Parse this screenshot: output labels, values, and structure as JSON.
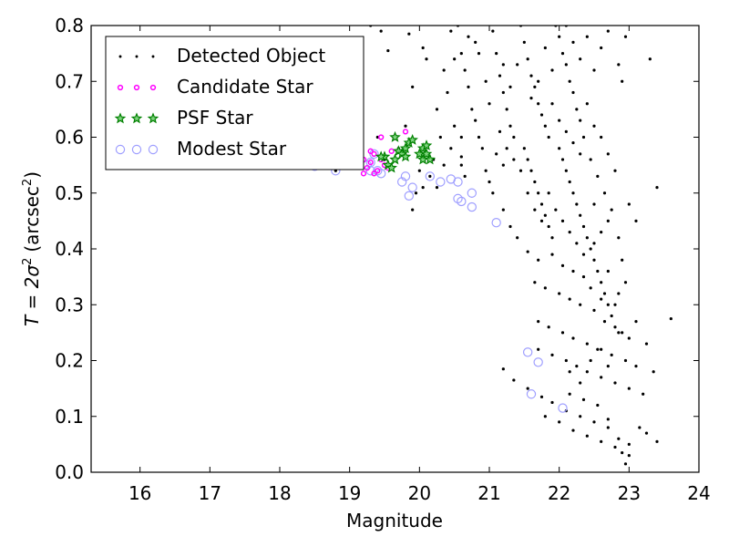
{
  "chart_data": {
    "type": "scatter",
    "xlabel": "Magnitude",
    "ylabel_prefix": "T = 2σ",
    "ylabel_sup_y": "2",
    "ylabel_unit": "(arcsec",
    "ylabel_sup_u": "2",
    "ylabel_close": ")",
    "xlim": [
      15.3,
      24.0
    ],
    "ylim": [
      0.0,
      0.8
    ],
    "xticks": [
      16,
      17,
      18,
      19,
      20,
      21,
      22,
      23,
      24
    ],
    "yticks": [
      0.0,
      0.1,
      0.2,
      0.3,
      0.4,
      0.5,
      0.6,
      0.7,
      0.8
    ],
    "grid": false,
    "legend_position": "top-left",
    "series": [
      {
        "name": "Detected Object",
        "marker": "dot",
        "color": "#000000",
        "points": [
          [
            17.2,
            0.548
          ],
          [
            17.6,
            0.548
          ],
          [
            18.0,
            0.548
          ],
          [
            18.5,
            0.546
          ],
          [
            18.8,
            0.54
          ],
          [
            19.05,
            0.552
          ],
          [
            19.15,
            0.545
          ],
          [
            19.4,
            0.6
          ],
          [
            19.9,
            0.47
          ],
          [
            20.3,
            0.6
          ],
          [
            20.5,
            0.62
          ],
          [
            19.8,
            0.62
          ],
          [
            19.5,
            0.56
          ],
          [
            19.6,
            0.545
          ],
          [
            19.7,
            0.58
          ],
          [
            20.6,
            0.565
          ],
          [
            19.3,
            0.8
          ],
          [
            19.45,
            0.79
          ],
          [
            19.55,
            0.755
          ],
          [
            19.85,
            0.785
          ],
          [
            20.05,
            0.76
          ],
          [
            20.1,
            0.74
          ],
          [
            20.25,
            0.65
          ],
          [
            19.9,
            0.69
          ],
          [
            20.35,
            0.72
          ],
          [
            20.45,
            0.79
          ],
          [
            20.55,
            0.8
          ],
          [
            20.6,
            0.75
          ],
          [
            20.65,
            0.72
          ],
          [
            20.7,
            0.69
          ],
          [
            20.75,
            0.65
          ],
          [
            20.8,
            0.63
          ],
          [
            20.85,
            0.6
          ],
          [
            20.9,
            0.58
          ],
          [
            20.6,
            0.55
          ],
          [
            20.65,
            0.53
          ],
          [
            20.95,
            0.54
          ],
          [
            21.0,
            0.52
          ],
          [
            20.8,
            0.77
          ],
          [
            21.05,
            0.79
          ],
          [
            21.1,
            0.75
          ],
          [
            21.15,
            0.71
          ],
          [
            21.2,
            0.68
          ],
          [
            21.25,
            0.65
          ],
          [
            21.3,
            0.62
          ],
          [
            21.35,
            0.6
          ],
          [
            21.1,
            0.57
          ],
          [
            21.2,
            0.55
          ],
          [
            21.05,
            0.5
          ],
          [
            21.2,
            0.47
          ],
          [
            21.3,
            0.44
          ],
          [
            21.4,
            0.42
          ],
          [
            21.45,
            0.8
          ],
          [
            21.5,
            0.77
          ],
          [
            21.55,
            0.74
          ],
          [
            21.6,
            0.71
          ],
          [
            21.65,
            0.69
          ],
          [
            21.7,
            0.66
          ],
          [
            21.75,
            0.64
          ],
          [
            21.8,
            0.62
          ],
          [
            21.85,
            0.6
          ],
          [
            21.5,
            0.58
          ],
          [
            21.55,
            0.56
          ],
          [
            21.6,
            0.54
          ],
          [
            21.65,
            0.52
          ],
          [
            21.7,
            0.5
          ],
          [
            21.75,
            0.48
          ],
          [
            21.8,
            0.46
          ],
          [
            21.85,
            0.44
          ],
          [
            21.9,
            0.42
          ],
          [
            21.95,
            0.8
          ],
          [
            22.0,
            0.78
          ],
          [
            22.05,
            0.75
          ],
          [
            22.1,
            0.73
          ],
          [
            22.15,
            0.7
          ],
          [
            22.2,
            0.68
          ],
          [
            22.25,
            0.65
          ],
          [
            22.3,
            0.63
          ],
          [
            22.35,
            0.6
          ],
          [
            22.0,
            0.58
          ],
          [
            22.05,
            0.56
          ],
          [
            22.1,
            0.54
          ],
          [
            22.15,
            0.52
          ],
          [
            22.2,
            0.5
          ],
          [
            22.25,
            0.48
          ],
          [
            22.3,
            0.46
          ],
          [
            22.35,
            0.44
          ],
          [
            22.4,
            0.42
          ],
          [
            22.45,
            0.4
          ],
          [
            22.5,
            0.38
          ],
          [
            22.55,
            0.36
          ],
          [
            22.6,
            0.34
          ],
          [
            22.65,
            0.32
          ],
          [
            22.7,
            0.3
          ],
          [
            22.75,
            0.28
          ],
          [
            22.8,
            0.26
          ],
          [
            22.85,
            0.25
          ],
          [
            21.8,
            0.76
          ],
          [
            21.9,
            0.72
          ],
          [
            21.7,
            0.7
          ],
          [
            21.6,
            0.67
          ],
          [
            21.9,
            0.66
          ],
          [
            22.0,
            0.63
          ],
          [
            22.1,
            0.61
          ],
          [
            22.2,
            0.59
          ],
          [
            22.3,
            0.57
          ],
          [
            21.4,
            0.73
          ],
          [
            21.3,
            0.69
          ],
          [
            21.2,
            0.73
          ],
          [
            21.0,
            0.66
          ],
          [
            20.95,
            0.7
          ],
          [
            20.85,
            0.75
          ],
          [
            20.7,
            0.78
          ],
          [
            20.5,
            0.74
          ],
          [
            20.4,
            0.68
          ],
          [
            22.4,
            0.66
          ],
          [
            22.5,
            0.62
          ],
          [
            22.6,
            0.6
          ],
          [
            22.7,
            0.57
          ],
          [
            22.8,
            0.54
          ],
          [
            22.45,
            0.56
          ],
          [
            22.55,
            0.53
          ],
          [
            22.65,
            0.5
          ],
          [
            22.5,
            0.48
          ],
          [
            21.55,
            0.395
          ],
          [
            21.7,
            0.38
          ],
          [
            21.9,
            0.39
          ],
          [
            22.05,
            0.37
          ],
          [
            22.2,
            0.36
          ],
          [
            22.35,
            0.35
          ],
          [
            22.45,
            0.33
          ],
          [
            22.6,
            0.31
          ],
          [
            22.8,
            0.3
          ],
          [
            21.65,
            0.34
          ],
          [
            21.8,
            0.33
          ],
          [
            22.0,
            0.32
          ],
          [
            22.15,
            0.31
          ],
          [
            22.3,
            0.3
          ],
          [
            22.5,
            0.29
          ],
          [
            22.65,
            0.27
          ],
          [
            22.9,
            0.25
          ],
          [
            23.0,
            0.24
          ],
          [
            21.7,
            0.27
          ],
          [
            21.85,
            0.26
          ],
          [
            22.05,
            0.25
          ],
          [
            22.2,
            0.24
          ],
          [
            22.4,
            0.23
          ],
          [
            22.55,
            0.22
          ],
          [
            22.75,
            0.21
          ],
          [
            22.95,
            0.2
          ],
          [
            23.1,
            0.19
          ],
          [
            21.7,
            0.22
          ],
          [
            21.9,
            0.21
          ],
          [
            22.1,
            0.2
          ],
          [
            22.25,
            0.19
          ],
          [
            22.4,
            0.18
          ],
          [
            22.6,
            0.17
          ],
          [
            22.8,
            0.16
          ],
          [
            23.0,
            0.15
          ],
          [
            23.2,
            0.14
          ],
          [
            21.2,
            0.185
          ],
          [
            21.35,
            0.165
          ],
          [
            21.55,
            0.15
          ],
          [
            21.75,
            0.135
          ],
          [
            21.9,
            0.125
          ],
          [
            22.1,
            0.11
          ],
          [
            22.3,
            0.1
          ],
          [
            22.5,
            0.09
          ],
          [
            22.7,
            0.08
          ],
          [
            21.8,
            0.1
          ],
          [
            22.0,
            0.09
          ],
          [
            22.2,
            0.075
          ],
          [
            22.4,
            0.065
          ],
          [
            22.6,
            0.055
          ],
          [
            22.8,
            0.045
          ],
          [
            22.9,
            0.035
          ],
          [
            23.0,
            0.03
          ],
          [
            22.95,
            0.015
          ],
          [
            23.0,
            0.05
          ],
          [
            23.15,
            0.08
          ],
          [
            23.25,
            0.07
          ],
          [
            23.4,
            0.055
          ],
          [
            22.85,
            0.06
          ],
          [
            22.7,
            0.095
          ],
          [
            22.55,
            0.12
          ],
          [
            22.35,
            0.13
          ],
          [
            22.15,
            0.14
          ],
          [
            23.1,
            0.27
          ],
          [
            23.25,
            0.23
          ],
          [
            23.35,
            0.18
          ],
          [
            23.6,
            0.275
          ],
          [
            23.1,
            0.45
          ],
          [
            23.0,
            0.48
          ],
          [
            23.4,
            0.51
          ],
          [
            23.3,
            0.74
          ],
          [
            22.9,
            0.7
          ],
          [
            22.85,
            0.73
          ],
          [
            22.95,
            0.78
          ],
          [
            22.7,
            0.79
          ],
          [
            22.6,
            0.76
          ],
          [
            22.5,
            0.72
          ],
          [
            22.4,
            0.78
          ],
          [
            22.3,
            0.74
          ],
          [
            22.2,
            0.77
          ],
          [
            22.1,
            0.8
          ],
          [
            20.2,
            0.56
          ],
          [
            20.15,
            0.53
          ],
          [
            20.0,
            0.54
          ],
          [
            20.05,
            0.51
          ],
          [
            19.95,
            0.5
          ],
          [
            20.45,
            0.58
          ],
          [
            20.35,
            0.55
          ],
          [
            20.25,
            0.51
          ],
          [
            20.6,
            0.6
          ],
          [
            21.15,
            0.61
          ],
          [
            21.25,
            0.58
          ],
          [
            21.35,
            0.56
          ],
          [
            21.45,
            0.54
          ],
          [
            21.55,
            0.5
          ],
          [
            21.65,
            0.47
          ],
          [
            21.75,
            0.45
          ],
          [
            21.85,
            0.5
          ],
          [
            21.95,
            0.47
          ],
          [
            22.05,
            0.45
          ],
          [
            22.15,
            0.43
          ],
          [
            22.25,
            0.41
          ],
          [
            22.35,
            0.39
          ],
          [
            22.5,
            0.41
          ],
          [
            22.6,
            0.43
          ],
          [
            22.7,
            0.45
          ],
          [
            22.75,
            0.47
          ],
          [
            22.85,
            0.42
          ],
          [
            22.9,
            0.38
          ],
          [
            22.95,
            0.34
          ],
          [
            22.7,
            0.36
          ],
          [
            22.85,
            0.32
          ],
          [
            22.6,
            0.22
          ],
          [
            22.7,
            0.19
          ],
          [
            22.45,
            0.2
          ],
          [
            22.3,
            0.16
          ],
          [
            22.15,
            0.18
          ]
        ]
      },
      {
        "name": "Candidate Star",
        "marker": "ring",
        "color": "#ff00ff",
        "points": [
          [
            19.1,
            0.55
          ],
          [
            19.2,
            0.56
          ],
          [
            19.25,
            0.545
          ],
          [
            19.3,
            0.575
          ],
          [
            19.35,
            0.57
          ],
          [
            19.3,
            0.555
          ],
          [
            19.4,
            0.54
          ],
          [
            19.45,
            0.56
          ],
          [
            19.45,
            0.6
          ],
          [
            19.35,
            0.535
          ],
          [
            19.5,
            0.55
          ],
          [
            19.55,
            0.545
          ],
          [
            19.6,
            0.575
          ],
          [
            19.8,
            0.61
          ],
          [
            19.65,
            0.6
          ],
          [
            19.2,
            0.535
          ]
        ]
      },
      {
        "name": "PSF Star",
        "marker": "star",
        "color": "#008000",
        "points": [
          [
            19.5,
            0.565
          ],
          [
            19.55,
            0.55
          ],
          [
            19.6,
            0.545
          ],
          [
            19.65,
            0.56
          ],
          [
            19.7,
            0.575
          ],
          [
            19.75,
            0.57
          ],
          [
            19.8,
            0.58
          ],
          [
            19.85,
            0.59
          ],
          [
            19.9,
            0.595
          ],
          [
            19.65,
            0.6
          ],
          [
            19.8,
            0.565
          ],
          [
            20.0,
            0.57
          ],
          [
            20.05,
            0.58
          ],
          [
            20.1,
            0.585
          ],
          [
            20.05,
            0.56
          ],
          [
            20.15,
            0.56
          ],
          [
            19.45,
            0.565
          ],
          [
            20.1,
            0.57
          ]
        ]
      },
      {
        "name": "Modest Star",
        "marker": "open-circle",
        "color": "#9f9fff",
        "points": [
          [
            15.75,
            0.577
          ],
          [
            15.95,
            0.578
          ],
          [
            16.2,
            0.577
          ],
          [
            18.5,
            0.548
          ],
          [
            18.8,
            0.54
          ],
          [
            19.3,
            0.54
          ],
          [
            19.3,
            0.555
          ],
          [
            19.35,
            0.57
          ],
          [
            19.4,
            0.54
          ],
          [
            19.45,
            0.535
          ],
          [
            19.75,
            0.52
          ],
          [
            19.8,
            0.53
          ],
          [
            19.85,
            0.495
          ],
          [
            19.9,
            0.51
          ],
          [
            20.15,
            0.53
          ],
          [
            20.3,
            0.52
          ],
          [
            20.45,
            0.525
          ],
          [
            20.55,
            0.52
          ],
          [
            20.55,
            0.49
          ],
          [
            20.6,
            0.485
          ],
          [
            20.75,
            0.5
          ],
          [
            20.75,
            0.475
          ],
          [
            21.1,
            0.447
          ],
          [
            21.55,
            0.215
          ],
          [
            21.7,
            0.197
          ],
          [
            21.6,
            0.14
          ],
          [
            22.05,
            0.115
          ],
          [
            19.25,
            0.55
          ]
        ]
      }
    ]
  }
}
